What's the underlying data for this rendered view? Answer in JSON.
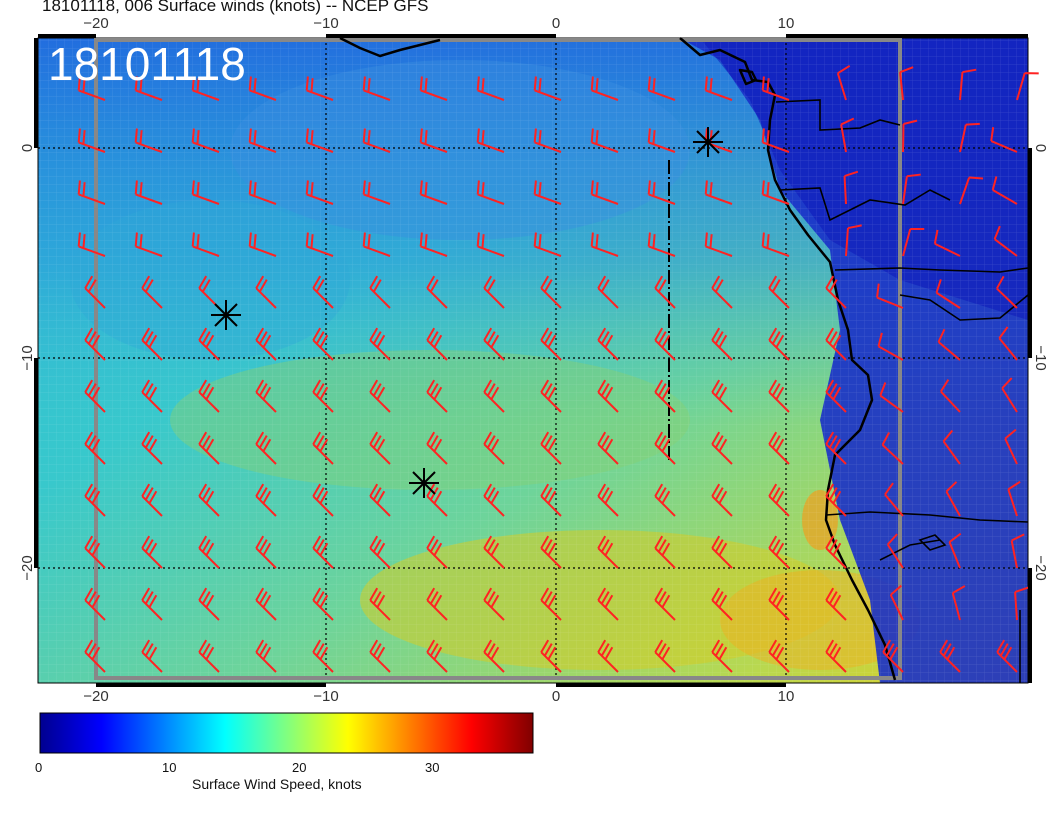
{
  "figure": {
    "title": "18101118, 006 Surface winds (knots) -- NCEP GFS",
    "stamp": "18101118"
  },
  "map": {
    "x_ticks": [
      "−20",
      "−10",
      "0",
      "10"
    ],
    "y_ticks": [
      "0",
      "−10",
      "−20"
    ],
    "storm_markers": 3
  },
  "colorbar": {
    "title": "Surface Wind Speed, knots",
    "labels": [
      "0",
      "10",
      "20",
      "30"
    ],
    "range": [
      0,
      38
    ],
    "colors": [
      "#00008f",
      "#0000ff",
      "#0080ff",
      "#00ffff",
      "#80ff80",
      "#ffff00",
      "#ff8000",
      "#ff0000",
      "#800000"
    ]
  },
  "colors": {
    "barb": "#ff2222",
    "coast": "#000000",
    "frame": "#888888"
  }
}
